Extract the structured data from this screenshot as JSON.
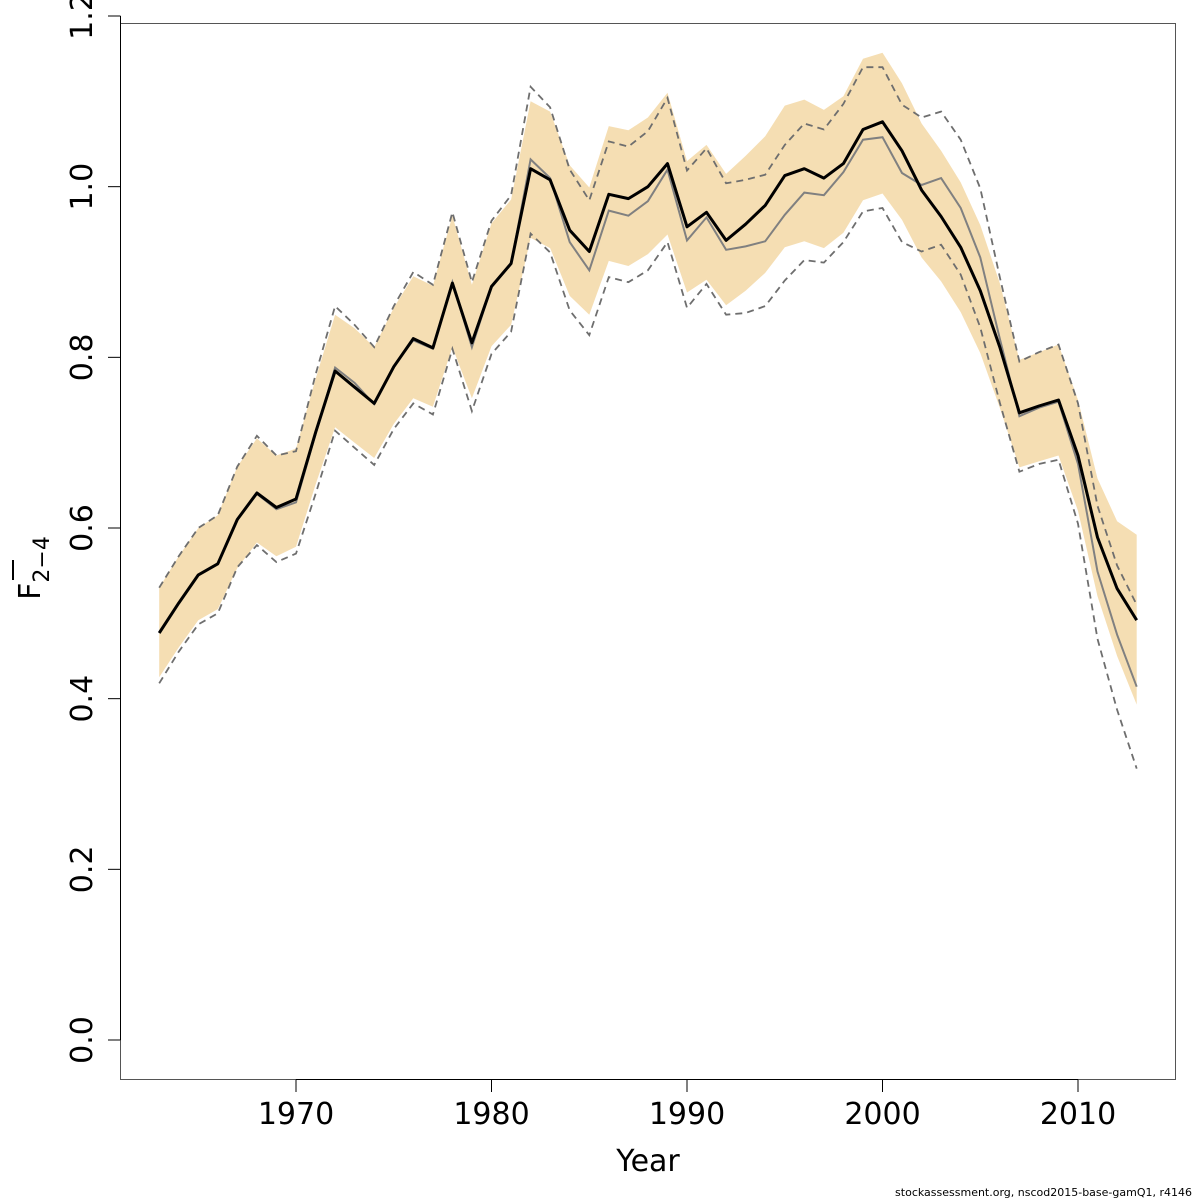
{
  "chart_data": {
    "type": "line",
    "xlabel": "Year",
    "ylabel": {
      "main": "F",
      "subscript": "2−4"
    },
    "ylim": [
      0.0,
      1.2
    ],
    "xlim": [
      1962,
      2015
    ],
    "yticks": [
      "0.0",
      "0.2",
      "0.4",
      "0.6",
      "0.8",
      "1.0",
      "1.2"
    ],
    "xticks": [
      "1970",
      "1980",
      "1990",
      "2000",
      "2010"
    ],
    "footer": "stockassessment.org, nscod2015-base-gamQ1, r4146",
    "colors": {
      "band": "#f5deb3",
      "estimate": "#000000",
      "comparison": "#808080",
      "comparison_ci": "#6e6e6e"
    },
    "x": [
      1963,
      1964,
      1965,
      1966,
      1967,
      1968,
      1969,
      1970,
      1971,
      1972,
      1973,
      1974,
      1975,
      1976,
      1977,
      1978,
      1979,
      1980,
      1981,
      1982,
      1983,
      1984,
      1985,
      1986,
      1987,
      1988,
      1989,
      1990,
      1991,
      1992,
      1993,
      1994,
      1995,
      1996,
      1997,
      1998,
      1999,
      2000,
      2001,
      2002,
      2003,
      2004,
      2005,
      2006,
      2007,
      2008,
      2009,
      2010,
      2011,
      2012,
      2013
    ],
    "series": [
      {
        "role": "estimate",
        "values": [
          0.477,
          0.512,
          0.545,
          0.558,
          0.61,
          0.641,
          0.624,
          0.634,
          0.712,
          0.784,
          0.765,
          0.746,
          0.789,
          0.822,
          0.811,
          0.887,
          0.817,
          0.883,
          0.91,
          1.021,
          1.008,
          0.949,
          0.924,
          0.991,
          0.986,
          1.0,
          1.027,
          0.953,
          0.97,
          0.937,
          0.956,
          0.978,
          1.013,
          1.021,
          1.01,
          1.027,
          1.067,
          1.076,
          1.042,
          0.996,
          0.965,
          0.929,
          0.878,
          0.812,
          0.735,
          0.743,
          0.75,
          0.685,
          0.589,
          0.529,
          0.492
        ]
      },
      {
        "role": "band-upper",
        "values": [
          0.53,
          0.567,
          0.6,
          0.615,
          0.672,
          0.705,
          0.685,
          0.693,
          0.775,
          0.85,
          0.834,
          0.812,
          0.858,
          0.895,
          0.884,
          0.966,
          0.885,
          0.957,
          0.985,
          1.1,
          1.088,
          1.025,
          0.999,
          1.071,
          1.066,
          1.081,
          1.11,
          1.03,
          1.049,
          1.015,
          1.036,
          1.059,
          1.095,
          1.102,
          1.09,
          1.106,
          1.15,
          1.157,
          1.121,
          1.074,
          1.042,
          1.005,
          0.955,
          0.887,
          0.797,
          0.806,
          0.815,
          0.75,
          0.658,
          0.608,
          0.592
        ]
      },
      {
        "role": "band-lower",
        "values": [
          0.425,
          0.46,
          0.492,
          0.505,
          0.553,
          0.583,
          0.567,
          0.578,
          0.651,
          0.718,
          0.7,
          0.682,
          0.722,
          0.752,
          0.742,
          0.812,
          0.752,
          0.813,
          0.838,
          0.94,
          0.928,
          0.872,
          0.85,
          0.913,
          0.907,
          0.921,
          0.944,
          0.876,
          0.891,
          0.861,
          0.878,
          0.899,
          0.929,
          0.936,
          0.928,
          0.946,
          0.984,
          0.992,
          0.961,
          0.917,
          0.889,
          0.853,
          0.805,
          0.741,
          0.671,
          0.678,
          0.685,
          0.62,
          0.52,
          0.45,
          0.393
        ]
      },
      {
        "role": "comparison",
        "values": [
          0.477,
          0.512,
          0.545,
          0.558,
          0.61,
          0.64,
          0.622,
          0.63,
          0.71,
          0.788,
          0.77,
          0.745,
          0.79,
          0.82,
          0.81,
          0.888,
          0.812,
          0.883,
          0.91,
          1.032,
          1.01,
          0.935,
          0.902,
          0.972,
          0.966,
          0.983,
          1.02,
          0.937,
          0.964,
          0.926,
          0.93,
          0.936,
          0.967,
          0.993,
          0.99,
          1.017,
          1.055,
          1.058,
          1.016,
          1.002,
          1.01,
          0.975,
          0.917,
          0.822,
          0.731,
          0.741,
          0.748,
          0.675,
          0.549,
          0.475,
          0.414
        ]
      },
      {
        "role": "comparison-upper",
        "values": [
          0.53,
          0.567,
          0.6,
          0.615,
          0.672,
          0.708,
          0.685,
          0.69,
          0.78,
          0.86,
          0.838,
          0.812,
          0.86,
          0.9,
          0.885,
          0.97,
          0.888,
          0.96,
          0.99,
          1.117,
          1.093,
          1.02,
          0.984,
          1.053,
          1.047,
          1.065,
          1.104,
          1.019,
          1.045,
          1.004,
          1.008,
          1.014,
          1.049,
          1.074,
          1.067,
          1.097,
          1.14,
          1.14,
          1.096,
          1.081,
          1.088,
          1.055,
          0.998,
          0.894,
          0.795,
          0.806,
          0.815,
          0.746,
          0.626,
          0.556,
          0.51
        ]
      },
      {
        "role": "comparison-lower",
        "values": [
          0.418,
          0.455,
          0.487,
          0.5,
          0.554,
          0.58,
          0.56,
          0.57,
          0.64,
          0.714,
          0.694,
          0.674,
          0.716,
          0.746,
          0.733,
          0.81,
          0.737,
          0.804,
          0.83,
          0.945,
          0.923,
          0.855,
          0.826,
          0.894,
          0.888,
          0.902,
          0.935,
          0.858,
          0.886,
          0.85,
          0.852,
          0.86,
          0.89,
          0.914,
          0.911,
          0.935,
          0.971,
          0.975,
          0.935,
          0.924,
          0.932,
          0.897,
          0.835,
          0.747,
          0.666,
          0.675,
          0.68,
          0.605,
          0.47,
          0.387,
          0.318
        ]
      }
    ]
  }
}
